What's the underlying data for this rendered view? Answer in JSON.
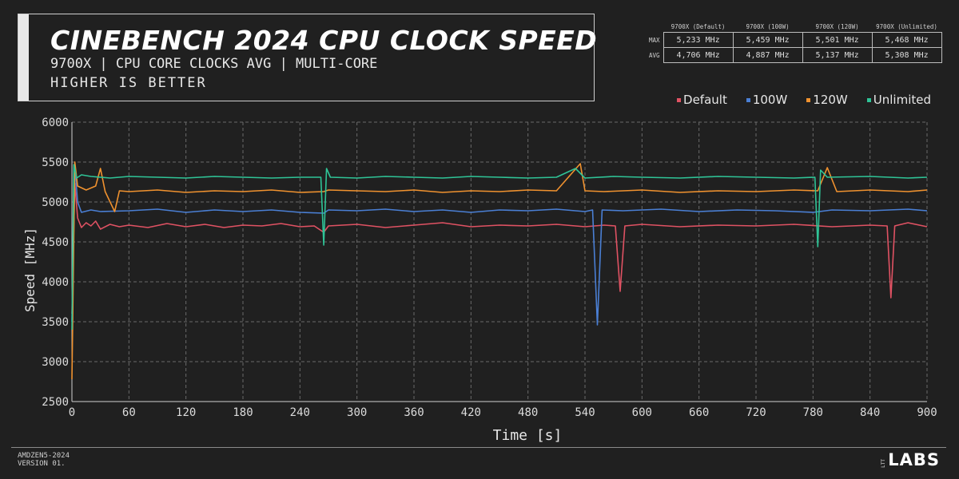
{
  "header": {
    "title": "CINEBENCH 2024 CPU CLOCK SPEED",
    "subtitle": "9700X | CPU CORE CLOCKS AVG | MULTI-CORE",
    "note": "HIGHER IS BETTER"
  },
  "stats_table": {
    "columns": [
      "9700X (Default)",
      "9700X (100W)",
      "9700X (120W)",
      "9700X (Unlimited)"
    ],
    "rows": [
      {
        "label": "MAX",
        "values": [
          "5,233 MHz",
          "5,459 MHz",
          "5,501 MHz",
          "5,468 MHz"
        ]
      },
      {
        "label": "AVG",
        "values": [
          "4,706 MHz",
          "4,887 MHz",
          "5,137 MHz",
          "5,308 MHz"
        ]
      }
    ]
  },
  "legend": [
    {
      "label": "Default",
      "color": "#e05263"
    },
    {
      "label": "100W",
      "color": "#4a7fd4"
    },
    {
      "label": "120W",
      "color": "#f0922f"
    },
    {
      "label": "Unlimited",
      "color": "#2fc497"
    }
  ],
  "chart_data": {
    "type": "line",
    "xlabel": "Time [s]",
    "ylabel": "Speed [MHz]",
    "xlim": [
      0,
      900
    ],
    "ylim": [
      2500,
      6000
    ],
    "xticks": [
      0,
      60,
      120,
      180,
      240,
      300,
      360,
      420,
      480,
      540,
      600,
      660,
      720,
      780,
      840,
      900
    ],
    "yticks": [
      2500,
      3000,
      3500,
      4000,
      4500,
      5000,
      5500,
      6000
    ],
    "grid": true,
    "legend_position": "top-right",
    "series": [
      {
        "name": "Default",
        "color": "#e05263",
        "points": [
          [
            0,
            3600
          ],
          [
            3,
            5233
          ],
          [
            6,
            4800
          ],
          [
            10,
            4680
          ],
          [
            15,
            4740
          ],
          [
            20,
            4700
          ],
          [
            25,
            4760
          ],
          [
            30,
            4660
          ],
          [
            40,
            4720
          ],
          [
            50,
            4690
          ],
          [
            60,
            4710
          ],
          [
            80,
            4680
          ],
          [
            100,
            4730
          ],
          [
            120,
            4690
          ],
          [
            140,
            4720
          ],
          [
            160,
            4680
          ],
          [
            180,
            4710
          ],
          [
            200,
            4700
          ],
          [
            220,
            4730
          ],
          [
            240,
            4690
          ],
          [
            255,
            4700
          ],
          [
            265,
            4620
          ],
          [
            270,
            4700
          ],
          [
            300,
            4720
          ],
          [
            330,
            4680
          ],
          [
            360,
            4710
          ],
          [
            390,
            4740
          ],
          [
            420,
            4690
          ],
          [
            450,
            4710
          ],
          [
            480,
            4700
          ],
          [
            510,
            4720
          ],
          [
            540,
            4690
          ],
          [
            560,
            4710
          ],
          [
            572,
            4700
          ],
          [
            577,
            3880
          ],
          [
            582,
            4700
          ],
          [
            600,
            4720
          ],
          [
            640,
            4690
          ],
          [
            680,
            4710
          ],
          [
            720,
            4700
          ],
          [
            760,
            4720
          ],
          [
            800,
            4690
          ],
          [
            840,
            4710
          ],
          [
            858,
            4700
          ],
          [
            862,
            3800
          ],
          [
            866,
            4700
          ],
          [
            880,
            4740
          ],
          [
            900,
            4690
          ]
        ]
      },
      {
        "name": "100W",
        "color": "#4a7fd4",
        "points": [
          [
            0,
            3500
          ],
          [
            3,
            5459
          ],
          [
            6,
            5000
          ],
          [
            10,
            4870
          ],
          [
            20,
            4900
          ],
          [
            30,
            4880
          ],
          [
            60,
            4890
          ],
          [
            90,
            4910
          ],
          [
            120,
            4870
          ],
          [
            150,
            4900
          ],
          [
            180,
            4880
          ],
          [
            210,
            4900
          ],
          [
            240,
            4870
          ],
          [
            265,
            4860
          ],
          [
            270,
            4900
          ],
          [
            300,
            4890
          ],
          [
            330,
            4910
          ],
          [
            360,
            4880
          ],
          [
            390,
            4900
          ],
          [
            420,
            4870
          ],
          [
            450,
            4900
          ],
          [
            480,
            4890
          ],
          [
            510,
            4910
          ],
          [
            540,
            4880
          ],
          [
            548,
            4900
          ],
          [
            553,
            3460
          ],
          [
            558,
            4900
          ],
          [
            580,
            4890
          ],
          [
            620,
            4910
          ],
          [
            660,
            4880
          ],
          [
            700,
            4900
          ],
          [
            740,
            4890
          ],
          [
            780,
            4870
          ],
          [
            800,
            4900
          ],
          [
            840,
            4890
          ],
          [
            880,
            4910
          ],
          [
            900,
            4890
          ]
        ]
      },
      {
        "name": "120W",
        "color": "#f0922f",
        "points": [
          [
            0,
            2780
          ],
          [
            3,
            5501
          ],
          [
            6,
            5200
          ],
          [
            15,
            5150
          ],
          [
            25,
            5200
          ],
          [
            30,
            5420
          ],
          [
            35,
            5130
          ],
          [
            45,
            4880
          ],
          [
            50,
            5140
          ],
          [
            60,
            5130
          ],
          [
            90,
            5150
          ],
          [
            120,
            5120
          ],
          [
            150,
            5140
          ],
          [
            180,
            5130
          ],
          [
            210,
            5150
          ],
          [
            240,
            5120
          ],
          [
            265,
            5130
          ],
          [
            270,
            5150
          ],
          [
            300,
            5140
          ],
          [
            330,
            5130
          ],
          [
            360,
            5150
          ],
          [
            390,
            5120
          ],
          [
            420,
            5140
          ],
          [
            450,
            5130
          ],
          [
            480,
            5150
          ],
          [
            510,
            5140
          ],
          [
            535,
            5480
          ],
          [
            540,
            5140
          ],
          [
            560,
            5130
          ],
          [
            600,
            5150
          ],
          [
            640,
            5120
          ],
          [
            680,
            5140
          ],
          [
            720,
            5130
          ],
          [
            760,
            5150
          ],
          [
            785,
            5140
          ],
          [
            795,
            5430
          ],
          [
            805,
            5130
          ],
          [
            840,
            5150
          ],
          [
            880,
            5130
          ],
          [
            900,
            5150
          ]
        ]
      },
      {
        "name": "Unlimited",
        "color": "#2fc497",
        "points": [
          [
            0,
            3400
          ],
          [
            2,
            5468
          ],
          [
            5,
            5300
          ],
          [
            10,
            5340
          ],
          [
            20,
            5320
          ],
          [
            40,
            5300
          ],
          [
            60,
            5320
          ],
          [
            90,
            5310
          ],
          [
            120,
            5300
          ],
          [
            150,
            5320
          ],
          [
            180,
            5310
          ],
          [
            210,
            5300
          ],
          [
            240,
            5310
          ],
          [
            262,
            5310
          ],
          [
            265,
            4460
          ],
          [
            268,
            5420
          ],
          [
            272,
            5310
          ],
          [
            300,
            5300
          ],
          [
            330,
            5320
          ],
          [
            360,
            5310
          ],
          [
            390,
            5300
          ],
          [
            420,
            5320
          ],
          [
            450,
            5310
          ],
          [
            480,
            5300
          ],
          [
            510,
            5310
          ],
          [
            530,
            5420
          ],
          [
            540,
            5300
          ],
          [
            570,
            5320
          ],
          [
            600,
            5310
          ],
          [
            640,
            5300
          ],
          [
            680,
            5320
          ],
          [
            720,
            5310
          ],
          [
            760,
            5300
          ],
          [
            782,
            5310
          ],
          [
            785,
            4440
          ],
          [
            788,
            5400
          ],
          [
            795,
            5310
          ],
          [
            840,
            5320
          ],
          [
            880,
            5300
          ],
          [
            900,
            5310
          ]
        ]
      }
    ]
  },
  "footer": {
    "code": "AMDZEN5-2024",
    "version": "VERSION 01.",
    "logo_small": "LTT",
    "logo_main": "LABS"
  }
}
